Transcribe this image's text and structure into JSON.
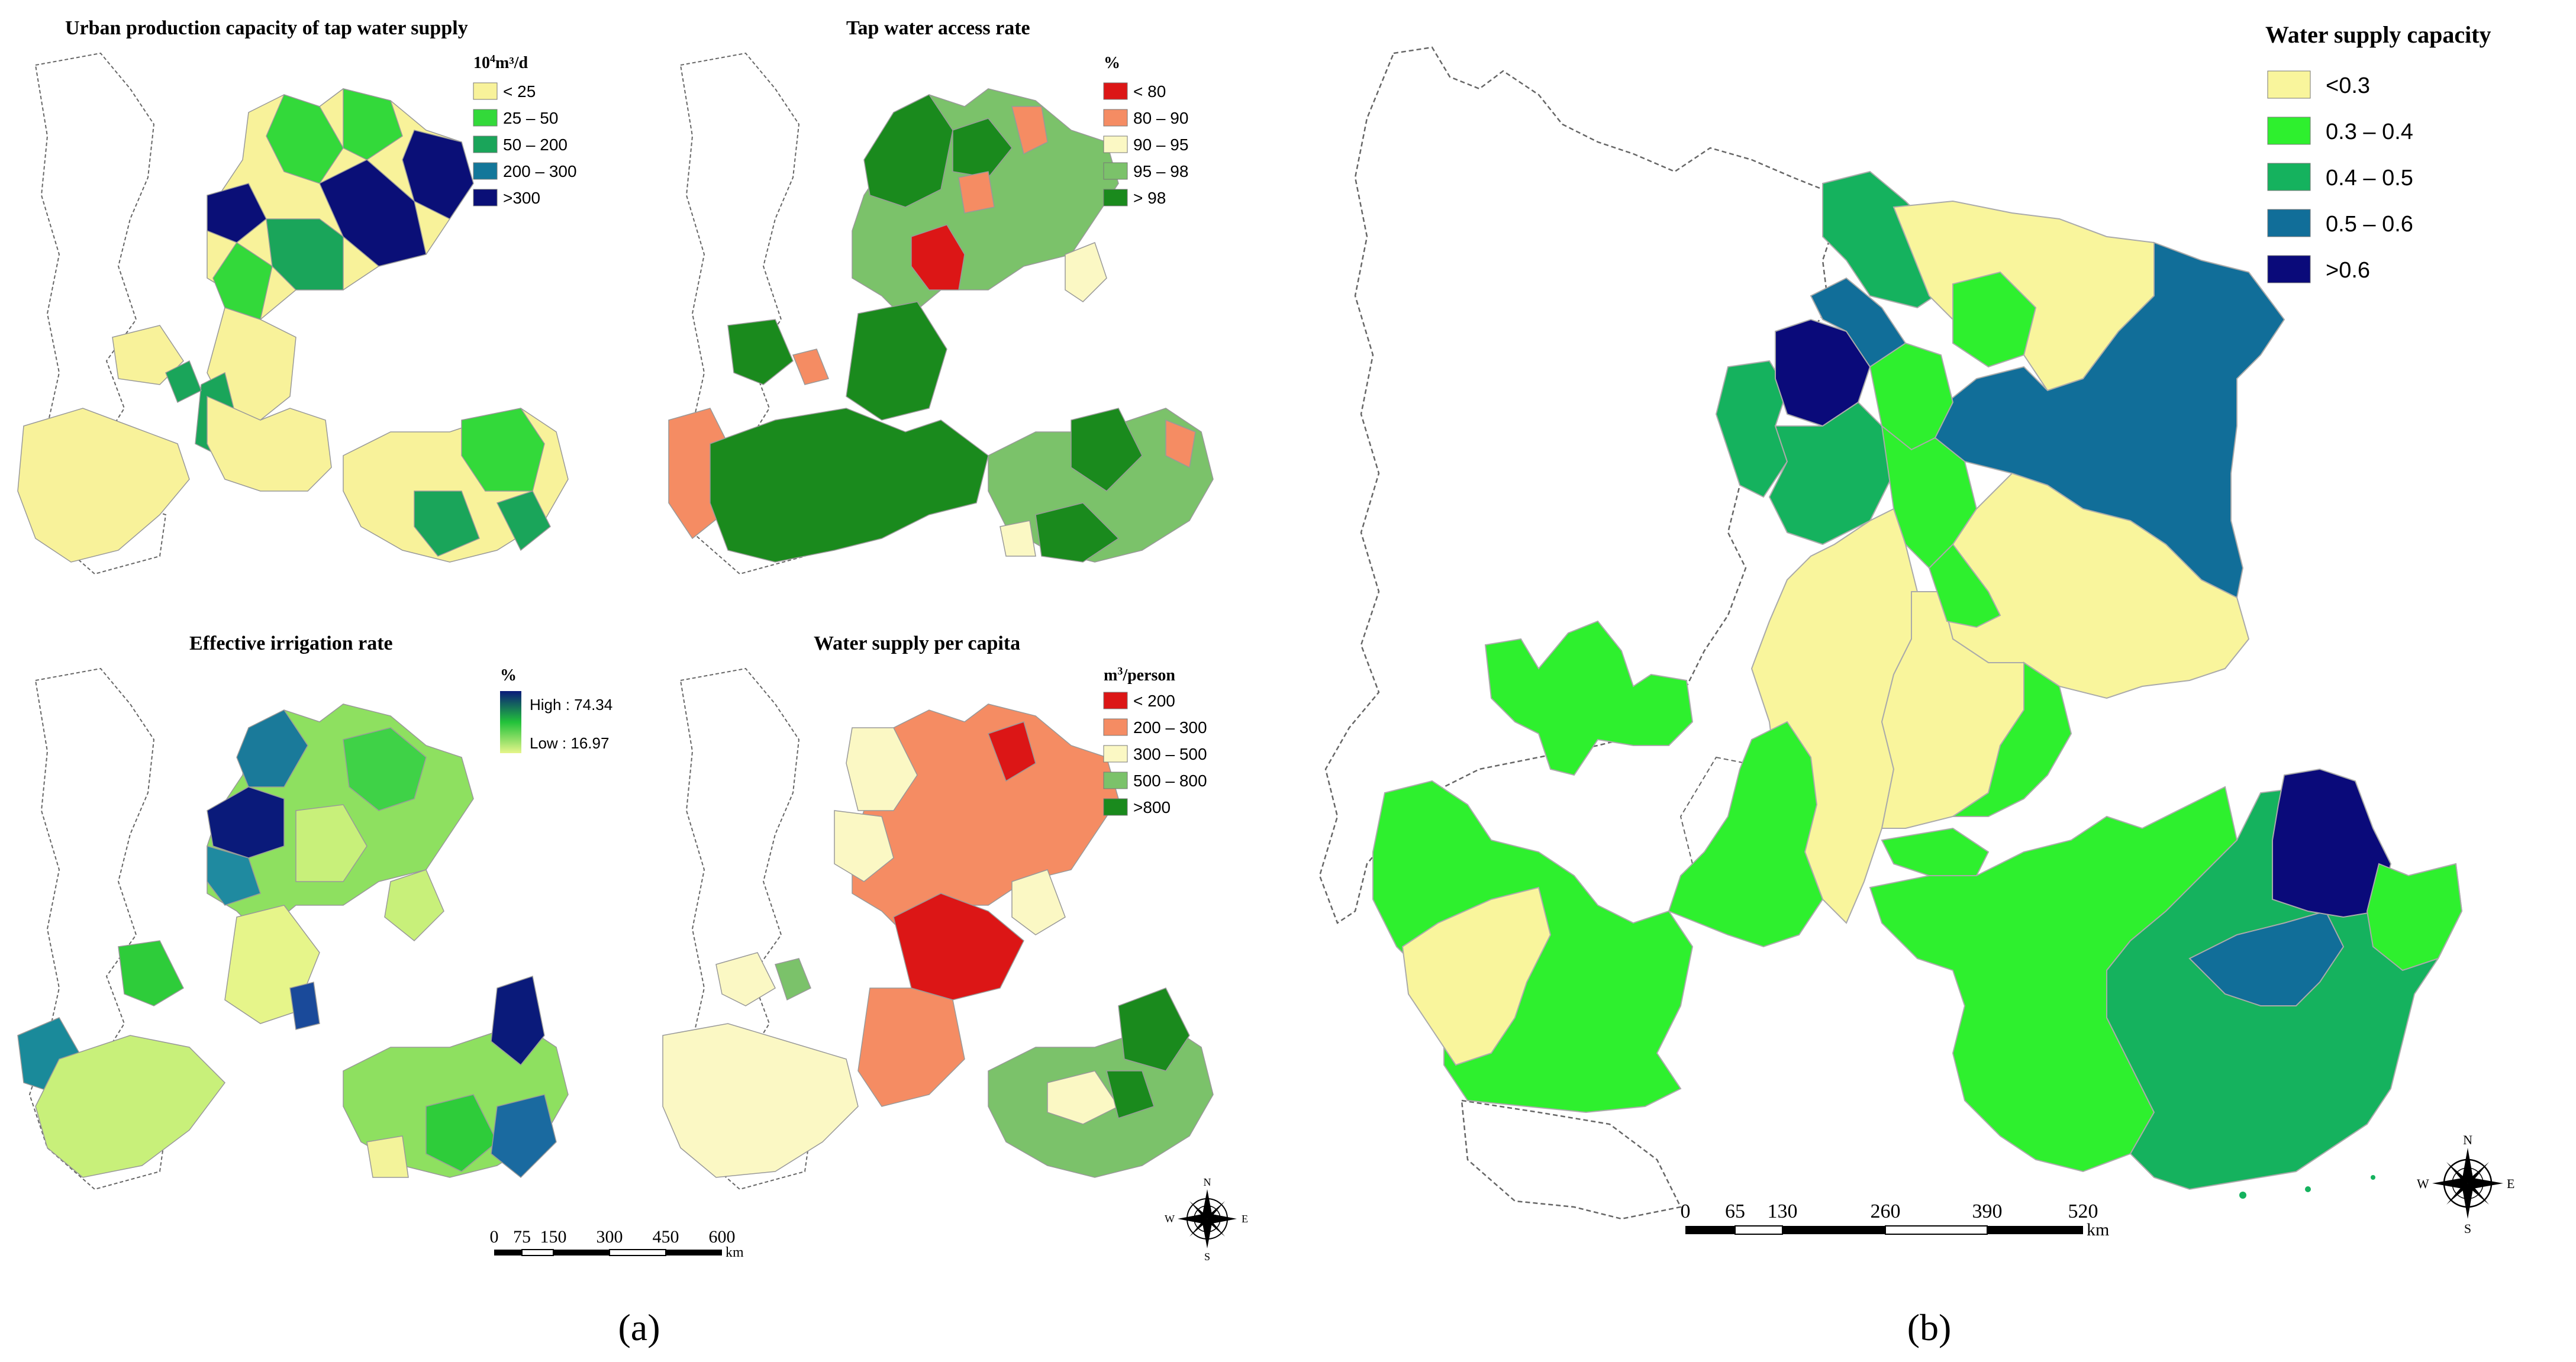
{
  "colors": {
    "cap_lt25": "#f8f29a",
    "cap_25_50": "#33d93a",
    "cap_50_200": "#1aa55a",
    "cap_200_300": "#13779a",
    "cap_gt300": "#0a0f77",
    "acc_lt80": "#dc1616",
    "acc_80_90": "#f58c63",
    "acc_90_95": "#fbf8c4",
    "acc_95_98": "#7bc26a",
    "acc_gt98": "#1a8a1d",
    "irr_high": "#0a1a7a",
    "irr_mid": "#22c23a",
    "irr_low": "#e6f58a",
    "pc_lt200": "#dc1616",
    "pc_200_300": "#f58c63",
    "pc_300_500": "#fbf8c4",
    "pc_500_800": "#7bc26a",
    "pc_gt800": "#1a8a1d",
    "ws_lt03": "#f9f59c",
    "ws_03_04": "#2ef02e",
    "ws_04_05": "#15b25e",
    "ws_05_06": "#116e99",
    "ws_gt06": "#0a0a7a"
  },
  "panel_a": {
    "label": "(a)",
    "map1": {
      "title": "Urban production capacity of tap water supply",
      "unit_main": "10",
      "unit_sup": "4",
      "unit_rest": "m³/d",
      "legend": [
        "< 25",
        "25 – 50",
        "50 – 200",
        "200 – 300",
        ">300"
      ]
    },
    "map2": {
      "title": "Tap water access rate",
      "unit": "%",
      "legend": [
        "< 80",
        "80 – 90",
        "90 – 95",
        "95 – 98",
        "> 98"
      ]
    },
    "map3": {
      "title": "Effective irrigation rate",
      "unit": "%",
      "high": "High : 74.34",
      "low": "Low : 16.97"
    },
    "map4": {
      "title": "Water supply per capita",
      "unit_main": "m",
      "unit_sup": "3",
      "unit_rest": "/person",
      "legend": [
        "< 200",
        "200 – 300",
        "300 – 500",
        "500 – 800",
        ">800"
      ]
    },
    "scale_ticks": [
      "0",
      "75",
      "150",
      "300",
      "450",
      "600"
    ],
    "scale_unit": "km",
    "compass": [
      "N",
      "E",
      "S",
      "W"
    ]
  },
  "panel_b": {
    "label": "(b)",
    "legend_title": "Water supply capacity",
    "legend": [
      "<0.3",
      "0.3 – 0.4",
      "0.4 – 0.5",
      "0.5 – 0.6",
      ">0.6"
    ],
    "scale_ticks": [
      "0",
      "65",
      "130",
      "260",
      "390",
      "520"
    ],
    "scale_unit": "km",
    "compass": [
      "N",
      "E",
      "S",
      "W"
    ]
  }
}
